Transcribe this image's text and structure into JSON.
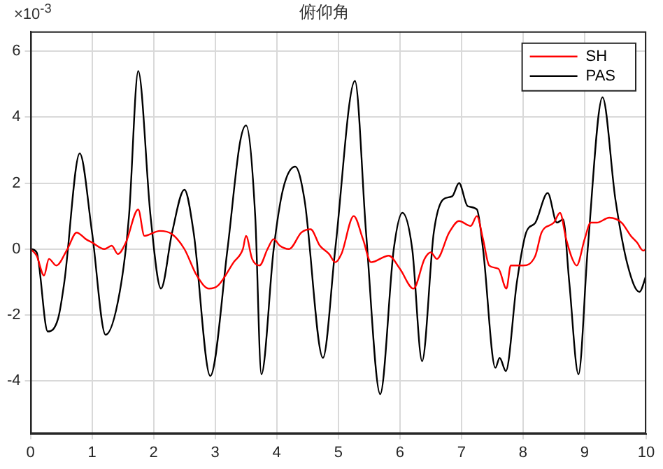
{
  "chart_data": {
    "type": "line",
    "title": "俯仰角",
    "annotations": [
      "×10$^{-3}$"
    ],
    "xlim": [
      0,
      10
    ],
    "xticks": [
      0,
      1,
      2,
      3,
      4,
      5,
      6,
      7,
      8,
      9,
      10
    ],
    "ylim": [
      -5.6,
      6.6
    ],
    "yticks": [
      -4,
      -2,
      0,
      2,
      4,
      6
    ],
    "grid": true,
    "legend": "top right",
    "marker": "none",
    "line_style": "solid",
    "series": [
      {
        "name": "SH",
        "color": "#ff0000",
        "x": [
          0,
          0.1,
          0.22,
          0.3,
          0.42,
          0.6,
          0.75,
          0.9,
          1.0,
          1.2,
          1.32,
          1.42,
          1.55,
          1.75,
          1.85,
          2.1,
          2.3,
          2.5,
          2.7,
          2.9,
          3.05,
          3.3,
          3.45,
          3.5,
          3.6,
          3.72,
          3.85,
          3.95,
          4.05,
          4.2,
          4.4,
          4.55,
          4.7,
          4.85,
          4.95,
          5.05,
          5.25,
          5.4,
          5.53,
          5.82,
          6.0,
          6.22,
          6.4,
          6.5,
          6.6,
          6.8,
          6.96,
          7.15,
          7.25,
          7.35,
          7.45,
          7.6,
          7.73,
          7.8,
          8.0,
          8.2,
          8.3,
          8.5,
          8.6,
          8.7,
          8.8,
          8.87,
          9.0,
          9.1,
          9.2,
          9.4,
          9.6,
          9.75,
          9.85,
          9.95,
          10
        ],
        "values": [
          0,
          -0.2,
          -0.8,
          -0.3,
          -0.5,
          0,
          0.5,
          0.3,
          0.2,
          0,
          0.1,
          -0.15,
          0.2,
          1.2,
          0.4,
          0.55,
          0.45,
          0,
          -0.8,
          -1.2,
          -1.1,
          -0.4,
          0,
          0.4,
          -0.3,
          -0.5,
          0,
          0.3,
          0.1,
          0,
          0.5,
          0.6,
          0.1,
          -0.15,
          -0.4,
          -0.15,
          1.0,
          0.3,
          -0.4,
          -0.2,
          -0.6,
          -1.2,
          -0.3,
          -0.1,
          -0.3,
          0.5,
          0.85,
          0.7,
          1.0,
          0.3,
          -0.5,
          -0.6,
          -1.2,
          -0.5,
          -0.5,
          -0.2,
          0.5,
          0.8,
          1.1,
          0.3,
          -0.3,
          -0.5,
          0.3,
          0.8,
          0.8,
          0.95,
          0.8,
          0.4,
          0.2,
          -0.05,
          0
        ]
      },
      {
        "name": "PAS",
        "color": "#000000",
        "x": [
          0,
          0.1,
          0.28,
          0.45,
          0.55,
          0.8,
          1.0,
          1.22,
          1.45,
          1.6,
          1.75,
          1.95,
          2.12,
          2.3,
          2.5,
          2.65,
          2.92,
          3.2,
          3.4,
          3.5,
          3.65,
          3.75,
          3.95,
          4.1,
          4.3,
          4.45,
          4.75,
          4.95,
          5.27,
          5.45,
          5.68,
          5.9,
          6.04,
          6.2,
          6.36,
          6.55,
          6.7,
          6.85,
          6.96,
          7.1,
          7.25,
          7.35,
          7.55,
          7.62,
          7.72,
          7.9,
          8.05,
          8.2,
          8.4,
          8.55,
          8.65,
          8.75,
          8.9,
          9.05,
          9.29,
          9.5,
          9.7,
          9.89,
          10
        ],
        "values": [
          0,
          -0.1,
          -2.5,
          -2.1,
          -1.0,
          2.9,
          0.5,
          -2.6,
          -1.3,
          1.0,
          5.4,
          1.0,
          -1.2,
          0.5,
          1.8,
          0.5,
          -3.85,
          0,
          3.2,
          3.75,
          1.0,
          -3.8,
          0,
          1.8,
          2.5,
          1.5,
          -3.3,
          0,
          5.1,
          0.5,
          -4.4,
          0,
          1.1,
          0,
          -3.4,
          0.5,
          1.5,
          1.6,
          2.0,
          1.3,
          1.2,
          0,
          -3.6,
          -3.3,
          -3.7,
          -1.0,
          0.5,
          0.8,
          1.7,
          0.8,
          0.9,
          -1.0,
          -3.8,
          0,
          4.6,
          1.5,
          -0.5,
          -1.3,
          -0.8
        ]
      }
    ]
  }
}
